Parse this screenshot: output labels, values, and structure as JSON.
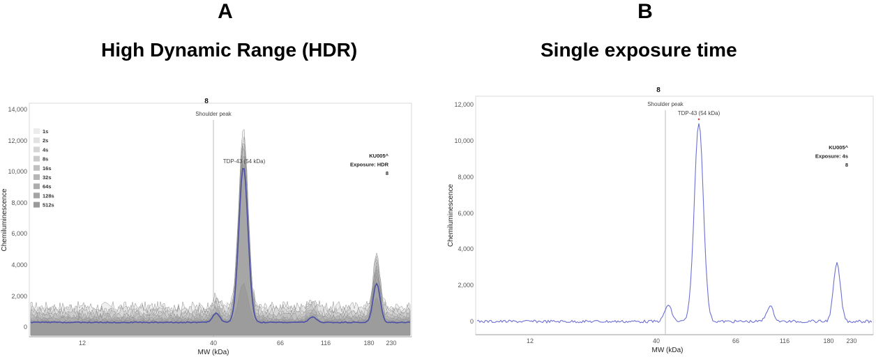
{
  "panels": {
    "a": {
      "letter": "A",
      "title": "High Dynamic Range  (HDR)"
    },
    "b": {
      "letter": "B",
      "title": "Single exposure time"
    }
  },
  "chart_data": [
    {
      "type": "line",
      "panel": "A",
      "lane_label": "8",
      "xlabel": "MW (kDa)",
      "ylabel": "Chemiluminescence",
      "x_ticks": [
        "12",
        "40",
        "66",
        "116",
        "180",
        "230"
      ],
      "y_ticks": [
        "0",
        "2,000",
        "4,000",
        "6,000",
        "8,000",
        "10,000",
        "12,000",
        "14,000"
      ],
      "ylim": [
        0,
        14000
      ],
      "grid": false,
      "legend_position": "top-left",
      "legend": [
        "1s",
        "2s",
        "4s",
        "8s",
        "16s",
        "32s",
        "64s",
        "128s",
        "512s"
      ],
      "sample_label": [
        "KU005^",
        "Exposure: HDR",
        "8"
      ],
      "annotations": {
        "shoulder": "Shoulder peak",
        "target": "TDP-43 (54 kDa)"
      },
      "series_peaks": [
        {
          "name": "1s",
          "baseline": 1300,
          "peak_tdp43": 12600,
          "peak_shoulder": 1900,
          "peak_116": 1700,
          "peak_200": 4600
        },
        {
          "name": "2s",
          "baseline": 1150,
          "peak_tdp43": 12300,
          "peak_shoulder": 1800,
          "peak_116": 1600,
          "peak_200": 4400
        },
        {
          "name": "4s",
          "baseline": 1000,
          "peak_tdp43": 12000,
          "peak_shoulder": 1650,
          "peak_116": 1450,
          "peak_200": 4200
        },
        {
          "name": "8s",
          "baseline": 850,
          "peak_tdp43": 11700,
          "peak_shoulder": 1500,
          "peak_116": 1300,
          "peak_200": 4000
        },
        {
          "name": "16s",
          "baseline": 720,
          "peak_tdp43": 11400,
          "peak_shoulder": 1350,
          "peak_116": 1150,
          "peak_200": 3800
        },
        {
          "name": "32s",
          "baseline": 600,
          "peak_tdp43": 11100,
          "peak_shoulder": 1200,
          "peak_116": 1000,
          "peak_200": 3600
        },
        {
          "name": "64s",
          "baseline": 500,
          "peak_tdp43": 10800,
          "peak_shoulder": 1050,
          "peak_116": 900,
          "peak_200": 3400
        },
        {
          "name": "128s",
          "baseline": 420,
          "peak_tdp43": 10500,
          "peak_shoulder": 950,
          "peak_116": 800,
          "peak_200": 3200
        },
        {
          "name": "512s",
          "baseline": 350,
          "peak_tdp43": 2800,
          "peak_shoulder": 850,
          "peak_116": 700,
          "peak_200": 1800
        }
      ],
      "hdr_trace": {
        "baseline": 300,
        "peak_tdp43": 10300,
        "peak_shoulder": 900,
        "peak_116": 650,
        "peak_200": 2800
      }
    },
    {
      "type": "line",
      "panel": "B",
      "lane_label": "8",
      "xlabel": "MW (kDa)",
      "ylabel": "Chemiluminescence",
      "x_ticks": [
        "12",
        "40",
        "66",
        "116",
        "180",
        "230"
      ],
      "y_ticks": [
        "0",
        "2,000",
        "4,000",
        "6,000",
        "8,000",
        "10,000",
        "12,000"
      ],
      "ylim": [
        0,
        12500
      ],
      "grid": false,
      "sample_label": [
        "KU005^",
        "Exposure: 4s",
        "8"
      ],
      "annotations": {
        "shoulder": "Shoulder peak",
        "target": "TDP-43 (54 kDa)"
      },
      "trace": {
        "baseline": 0,
        "peak_tdp43": 11000,
        "peak_shoulder": 900,
        "peak_116": 850,
        "peak_200": 3200
      }
    }
  ]
}
